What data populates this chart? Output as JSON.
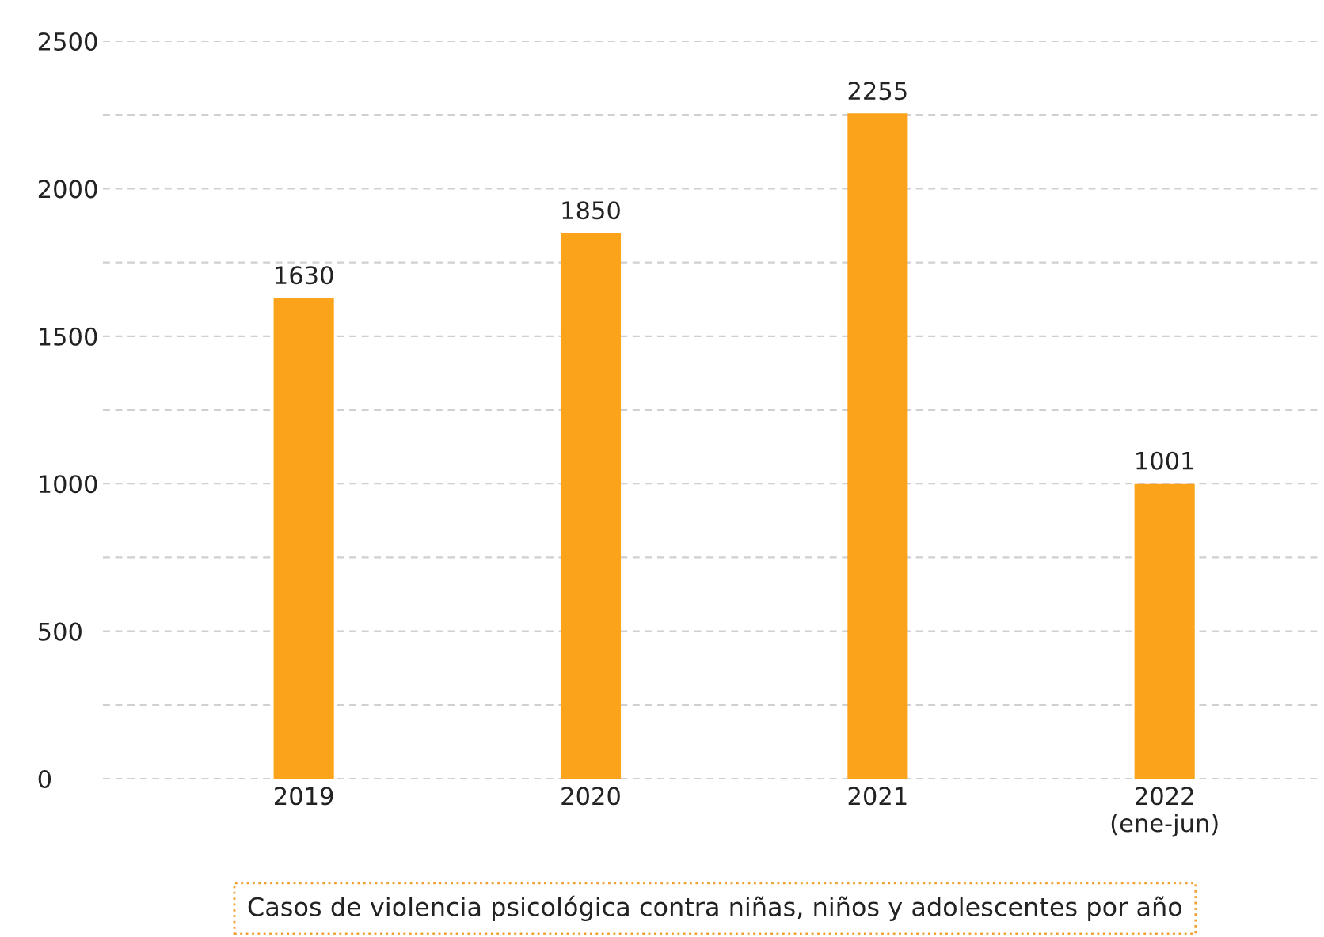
{
  "chart_data": {
    "type": "bar",
    "categories": [
      "2019",
      "2020",
      "2021",
      "2022\n(ene-jun)"
    ],
    "values": [
      1630,
      1850,
      2255,
      1001
    ],
    "color": "#fba31a",
    "data_labels": true,
    "ylim": [
      0,
      2500
    ],
    "yticks": [
      0,
      {
        "value": 250,
        "label": null
      },
      500,
      {
        "value": 750,
        "label": null
      },
      1000,
      {
        "value": 1250,
        "label": null
      },
      1500,
      {
        "value": 1750,
        "label": null
      },
      2000,
      {
        "value": 2250,
        "label": null
      },
      2500
    ],
    "grid": "y",
    "legend": false,
    "annotations": [
      "Casos de violencia psicológica contra niñas, niños y adolescentes por año"
    ]
  }
}
